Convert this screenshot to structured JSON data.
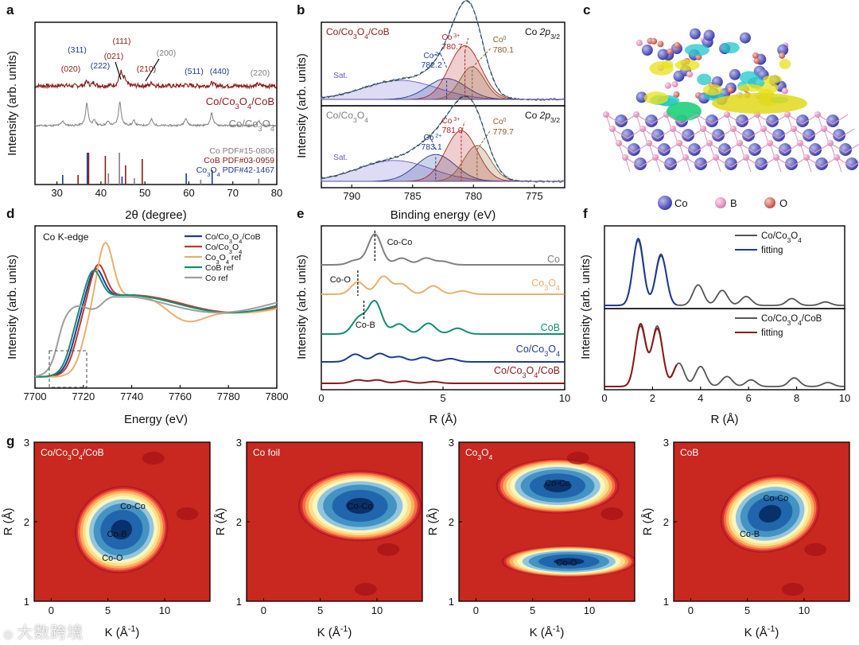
{
  "panel_letters": [
    "a",
    "b",
    "c",
    "d",
    "e",
    "f",
    "g"
  ],
  "watermark_text": "大数跨境",
  "chart_data": [
    {
      "id": "a",
      "type": "line",
      "xlabel": "2θ (degree)",
      "ylabel": "Intensity (arb. units)",
      "xlim": [
        25,
        80
      ],
      "xticks": [
        30,
        40,
        50,
        60,
        70,
        80
      ],
      "series": [
        {
          "name": "Co/Co3O4/CoB",
          "color": "#8B1A1A",
          "peaks": [
            [
              31.3,
              2
            ],
            [
              36.8,
              6
            ],
            [
              38.4,
              4
            ],
            [
              44.6,
              14
            ],
            [
              44.2,
              6
            ],
            [
              45.4,
              8
            ],
            [
              51.6,
              4
            ],
            [
              59.4,
              2
            ],
            [
              65.3,
              4
            ],
            [
              75.8,
              2
            ]
          ]
        },
        {
          "name": "Co/Co3O4",
          "color": "#7F7F7F",
          "peaks": [
            [
              31.3,
              6
            ],
            [
              36.8,
              28
            ],
            [
              38.5,
              6
            ],
            [
              44.3,
              30
            ],
            [
              41.6,
              5
            ],
            [
              47.5,
              6
            ],
            [
              51.5,
              8
            ],
            [
              59.3,
              10
            ],
            [
              65.2,
              16
            ],
            [
              75.9,
              6
            ]
          ]
        }
      ],
      "reflections": [
        {
          "label": "Co PDF#15-0806",
          "color": "#7F7F7F",
          "positions": [
            41.7,
            44.2,
            47.6,
            62.7,
            75.9
          ],
          "heights": [
            0.35,
            1.0,
            0.2,
            0.15,
            0.18
          ]
        },
        {
          "label": "CoB PDF#03-0959",
          "color": "#8B1A1A",
          "positions": [
            34.8,
            37.2,
            41.0,
            45.6,
            49.4
          ],
          "heights": [
            0.3,
            1.0,
            0.9,
            0.6,
            0.8
          ]
        },
        {
          "label": "Co3O4 PDF#42-1467",
          "color": "#1F3A93",
          "positions": [
            31.3,
            36.9,
            44.8,
            59.4,
            65.3
          ],
          "heights": [
            0.3,
            1.0,
            0.25,
            0.35,
            0.45
          ]
        }
      ],
      "annotations": [
        {
          "text": "(311)",
          "color": "#1F3A93"
        },
        {
          "text": "(222)",
          "color": "#1F3A93"
        },
        {
          "text": "(111)",
          "color": "#8B1A1A"
        },
        {
          "text": "(111)",
          "color": "#7F7F7F"
        },
        {
          "text": "(021)",
          "color": "#8B1A1A"
        },
        {
          "text": "(200)",
          "color": "#7F7F7F"
        },
        {
          "text": "(020)",
          "color": "#8B1A1A"
        },
        {
          "text": "(210)",
          "color": "#8B1A1A"
        },
        {
          "text": "(511)",
          "color": "#1F3A93"
        },
        {
          "text": "(440)",
          "color": "#1F3A93"
        },
        {
          "text": "(220)",
          "color": "#7F7F7F"
        }
      ]
    },
    {
      "id": "b",
      "type": "line",
      "xlabel": "Binding energy (eV)",
      "ylabel": "Intensity (arb. units)",
      "xlim": [
        792.5,
        772.5
      ],
      "xticks": [
        790,
        785,
        780,
        775
      ],
      "subplots": [
        {
          "title": "Co/Co3O4/CoB",
          "title_color": "#8B1A1A",
          "region": "Co 2p3/2",
          "components": [
            {
              "name": "Sat.",
              "center": 786.0,
              "height": 0.32,
              "width": 3.0,
              "color": "#6A5ACD"
            },
            {
              "name": "Co 2+",
              "center": 782.2,
              "height": 0.35,
              "width": 1.6,
              "color": "#1F3A93",
              "value": "782.2"
            },
            {
              "name": "Co 3+",
              "center": 780.7,
              "height": 0.9,
              "width": 1.3,
              "color": "#B22222",
              "value": "780.7"
            },
            {
              "name": "Co 0",
              "center": 780.1,
              "height": 0.55,
              "width": 1.0,
              "color": "#8B5A2B",
              "value": "780.1"
            }
          ]
        },
        {
          "title": "Co/Co3O4",
          "title_color": "#7F7F7F",
          "region": "Co 2p3/2",
          "components": [
            {
              "name": "Sat.",
              "center": 786.5,
              "height": 0.35,
              "width": 3.0,
              "color": "#6A5ACD"
            },
            {
              "name": "Co 2+",
              "center": 783.1,
              "height": 0.45,
              "width": 1.6,
              "color": "#1F3A93",
              "value": "783.1"
            },
            {
              "name": "Co 3+",
              "center": 781.0,
              "height": 0.85,
              "width": 1.3,
              "color": "#B22222",
              "value": "781.0"
            },
            {
              "name": "Co 0",
              "center": 779.7,
              "height": 0.6,
              "width": 1.1,
              "color": "#8B5A2B",
              "value": "779.7"
            }
          ]
        }
      ]
    },
    {
      "id": "c",
      "type": "structure",
      "legend": [
        {
          "name": "Co",
          "color": "#5B5FC7"
        },
        {
          "name": "B",
          "color": "#F2A6C8"
        },
        {
          "name": "O",
          "color": "#E8877A"
        }
      ]
    },
    {
      "id": "d",
      "type": "line",
      "title": "Co K-edge",
      "xlabel": "Energy (eV)",
      "ylabel": "Intensity (arb. units)",
      "xlim": [
        7700,
        7800
      ],
      "xticks": [
        7700,
        7720,
        7740,
        7760,
        7780,
        7800
      ],
      "series": [
        {
          "name": "Co/Co3O4/CoB",
          "color": "#1F3A93",
          "e0": 7716,
          "peak": 7725,
          "peak_h": 1.42
        },
        {
          "name": "Co/Co3O4",
          "color": "#C0392B",
          "e0": 7717,
          "peak": 7726,
          "peak_h": 1.48
        },
        {
          "name": "Co3O4 ref",
          "color": "#E8B070",
          "e0": 7720,
          "peak": 7729,
          "peak_h": 1.78
        },
        {
          "name": "CoB ref",
          "color": "#138D75",
          "e0": 7715,
          "peak": 7724,
          "peak_h": 1.4
        },
        {
          "name": "Co ref",
          "color": "#9E9E9E",
          "e0": 7710,
          "peak": 7730,
          "peak_h": 1.1
        }
      ]
    },
    {
      "id": "e",
      "type": "line",
      "xlabel": "R (Å)",
      "ylabel": "Intensity (arb. units)",
      "xlim": [
        0,
        10
      ],
      "xticks": [
        0,
        5,
        10
      ],
      "series": [
        {
          "name": "Co",
          "color": "#808080",
          "peaks": [
            [
              2.2,
              0.55
            ],
            [
              1.4,
              0.08
            ],
            [
              3.3,
              0.12
            ],
            [
              4.3,
              0.12
            ],
            [
              5.0,
              0.06
            ]
          ]
        },
        {
          "name": "Co3O4",
          "color": "#E8B070",
          "peaks": [
            [
              1.5,
              0.22
            ],
            [
              2.55,
              0.32
            ],
            [
              3.3,
              0.18
            ],
            [
              4.6,
              0.15
            ],
            [
              5.8,
              0.06
            ]
          ]
        },
        {
          "name": "CoB",
          "color": "#138D75",
          "peaks": [
            [
              1.55,
              0.22
            ],
            [
              2.2,
              0.45
            ],
            [
              3.2,
              0.14
            ],
            [
              4.4,
              0.15
            ],
            [
              5.6,
              0.08
            ]
          ]
        },
        {
          "name": "Co/Co3O4",
          "color": "#1F3A93",
          "peaks": [
            [
              1.4,
              0.12
            ],
            [
              2.4,
              0.13
            ],
            [
              3.2,
              0.08
            ],
            [
              4.2,
              0.07
            ],
            [
              5.3,
              0.05
            ]
          ]
        },
        {
          "name": "Co/Co3O4/CoB",
          "color": "#8B1A1A",
          "peaks": [
            [
              1.5,
              0.06
            ],
            [
              2.3,
              0.06
            ],
            [
              3.4,
              0.04
            ],
            [
              4.6,
              0.03
            ]
          ]
        }
      ],
      "annotations": [
        "Co-Co",
        "Co-O",
        "Co-B"
      ]
    },
    {
      "id": "f",
      "type": "line",
      "xlabel": "R (Å)",
      "ylabel": "Intensity (arb. units)",
      "xlim": [
        0,
        10
      ],
      "xticks": [
        0,
        2,
        4,
        6,
        8,
        10
      ],
      "subplots": [
        {
          "data_name": "Co/Co3O4",
          "data_color": "#555555",
          "fit_name": "fitting",
          "fit_color": "#1F3A93",
          "peaks": [
            [
              1.4,
              0.95
            ],
            [
              2.35,
              0.75
            ],
            [
              3.9,
              0.3
            ],
            [
              4.9,
              0.22
            ],
            [
              5.9,
              0.13
            ],
            [
              7.8,
              0.1
            ],
            [
              9.2,
              0.05
            ]
          ]
        },
        {
          "data_name": "Co/Co3O4/CoB",
          "data_color": "#555555",
          "fit_name": "fitting",
          "fit_color": "#8B1A1A",
          "peaks": [
            [
              1.5,
              0.9
            ],
            [
              2.2,
              0.9
            ],
            [
              3.1,
              0.35
            ],
            [
              4.0,
              0.3
            ],
            [
              5.1,
              0.15
            ],
            [
              6.1,
              0.1
            ],
            [
              7.9,
              0.13
            ],
            [
              9.3,
              0.06
            ]
          ]
        }
      ]
    },
    {
      "id": "g",
      "type": "heatmap",
      "xlabel": "K (Å⁻¹)",
      "ylabel": "R (Å)",
      "xlim": [
        -1.5,
        14
      ],
      "ylim": [
        1,
        3
      ],
      "xticks": [
        0,
        5,
        10
      ],
      "yticks": [
        1,
        2,
        3
      ],
      "maps": [
        {
          "title": "Co/Co3O4/CoB",
          "labels": [
            {
              "text": "Co-Co",
              "k": 7.2,
              "r": 2.2
            },
            {
              "text": "Co-B",
              "k": 5.8,
              "r": 1.85
            },
            {
              "text": "Co-O",
              "k": 5.4,
              "r": 1.55
            }
          ]
        },
        {
          "title": "Co foil",
          "labels": [
            {
              "text": "Co-Co",
              "k": 8.5,
              "r": 2.2
            }
          ]
        },
        {
          "title": "Co3O4",
          "labels": [
            {
              "text": "Co-Co",
              "k": 7.2,
              "r": 2.49
            },
            {
              "text": "Co-O",
              "k": 8.0,
              "r": 1.49
            }
          ]
        },
        {
          "title": "CoB",
          "labels": [
            {
              "text": "Co-Co",
              "k": 7.5,
              "r": 2.3
            },
            {
              "text": "Co-B",
              "k": 5.2,
              "r": 1.85
            }
          ]
        }
      ]
    }
  ]
}
